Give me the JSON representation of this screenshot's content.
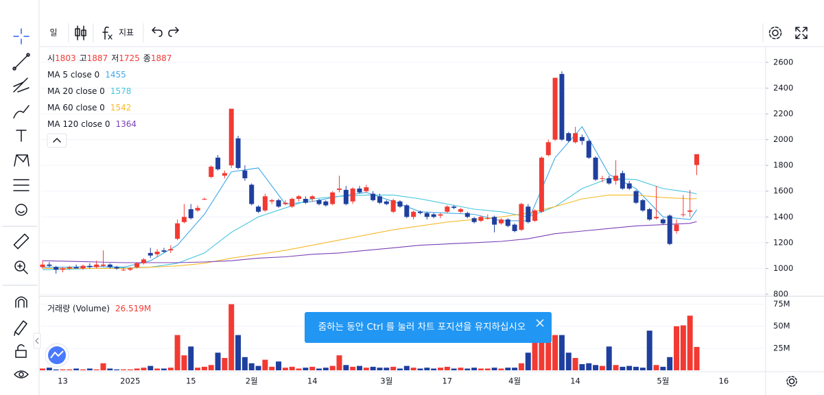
{
  "toolbar": {
    "interval": "일",
    "indicators": "지표"
  },
  "notice": "줌하는 동안 Ctrl 를 눌러 차트 포지션을 유지하십시오",
  "chart_data": {
    "type": "candlestick",
    "ohlc_labels": [
      "시",
      "고",
      "저",
      "종"
    ],
    "colors": {
      "up": "#f23a33",
      "down": "#1f3f9e"
    },
    "categories": [
      null,
      null,
      null,
      "13",
      null,
      null,
      null,
      null,
      null,
      null,
      null,
      null,
      null,
      "2025",
      null,
      null,
      null,
      null,
      null,
      null,
      null,
      null,
      "15",
      null,
      null,
      null,
      null,
      null,
      null,
      null,
      null,
      "2월",
      null,
      null,
      null,
      null,
      null,
      null,
      null,
      null,
      "14",
      null,
      null,
      null,
      null,
      null,
      null,
      null,
      null,
      null,
      null,
      "3월",
      null,
      null,
      null,
      null,
      null,
      null,
      null,
      null,
      "17",
      null,
      null,
      null,
      null,
      null,
      null,
      null,
      null,
      null,
      "4월",
      null,
      null,
      null,
      null,
      null,
      null,
      null,
      null,
      "14",
      null,
      null,
      null,
      null,
      null,
      null,
      null,
      null,
      null,
      null,
      null,
      null,
      "5월",
      null,
      null,
      null,
      null,
      null,
      null,
      null,
      null,
      "16"
    ],
    "ohlc": [
      [
        1010,
        1060,
        1000,
        1030
      ],
      [
        1030,
        1050,
        1010,
        1020
      ],
      [
        1010,
        1020,
        960,
        990
      ],
      [
        990,
        1010,
        970,
        1000
      ],
      [
        1000,
        1020,
        990,
        1010
      ],
      [
        1010,
        1030,
        1000,
        1000
      ],
      [
        1000,
        1030,
        990,
        1020
      ],
      [
        1020,
        1040,
        1000,
        1010
      ],
      [
        1010,
        1060,
        1000,
        1030
      ],
      [
        1020,
        1140,
        1010,
        1030
      ],
      [
        1030,
        1040,
        1000,
        1010
      ],
      [
        1010,
        1020,
        990,
        1000
      ],
      [
        990,
        1010,
        980,
        990
      ],
      [
        990,
        1010,
        980,
        1000
      ],
      [
        1010,
        1050,
        1000,
        1040
      ],
      [
        1040,
        1080,
        1030,
        1070
      ],
      [
        1120,
        1160,
        1080,
        1100
      ],
      [
        1110,
        1150,
        1090,
        1130
      ],
      [
        1140,
        1160,
        1120,
        1130
      ],
      [
        1140,
        1180,
        1120,
        1150
      ],
      [
        1230,
        1380,
        1220,
        1350
      ],
      [
        1360,
        1500,
        1350,
        1400
      ],
      [
        1460,
        1500,
        1380,
        1390
      ],
      [
        1450,
        1490,
        1440,
        1470
      ],
      [
        1540,
        1550,
        1530,
        1540
      ],
      [
        1710,
        1800,
        1700,
        1790
      ],
      [
        1860,
        1880,
        1760,
        1770
      ],
      [
        1720,
        1760,
        1700,
        1740
      ],
      [
        1800,
        2240,
        1780,
        2240
      ],
      [
        2010,
        2030,
        1770,
        1780
      ],
      [
        1760,
        1800,
        1680,
        1700
      ],
      [
        1650,
        1660,
        1490,
        1500
      ],
      [
        1480,
        1490,
        1430,
        1440
      ],
      [
        1450,
        1580,
        1440,
        1560
      ],
      [
        1520,
        1540,
        1500,
        1530
      ],
      [
        1530,
        1540,
        1470,
        1480
      ],
      [
        1500,
        1530,
        1490,
        1510
      ],
      [
        1480,
        1550,
        1470,
        1540
      ],
      [
        1540,
        1570,
        1520,
        1560
      ],
      [
        1540,
        1560,
        1500,
        1510
      ],
      [
        1540,
        1570,
        1520,
        1560
      ],
      [
        1530,
        1540,
        1490,
        1500
      ],
      [
        1520,
        1530,
        1480,
        1490
      ],
      [
        1500,
        1600,
        1490,
        1590
      ],
      [
        1610,
        1720,
        1590,
        1620
      ],
      [
        1610,
        1640,
        1490,
        1500
      ],
      [
        1520,
        1630,
        1500,
        1620
      ],
      [
        1620,
        1640,
        1580,
        1590
      ],
      [
        1600,
        1650,
        1590,
        1630
      ],
      [
        1580,
        1600,
        1520,
        1530
      ],
      [
        1560,
        1580,
        1500,
        1510
      ],
      [
        1520,
        1530,
        1490,
        1500
      ],
      [
        1440,
        1540,
        1430,
        1530
      ],
      [
        1520,
        1530,
        1470,
        1480
      ],
      [
        1490,
        1500,
        1390,
        1400
      ],
      [
        1400,
        1450,
        1380,
        1440
      ],
      [
        1440,
        1450,
        1420,
        1430
      ],
      [
        1430,
        1440,
        1380,
        1400
      ],
      [
        1420,
        1430,
        1390,
        1400
      ],
      [
        1410,
        1430,
        1390,
        1420
      ],
      [
        1440,
        1490,
        1430,
        1480
      ],
      [
        1480,
        1490,
        1460,
        1470
      ],
      [
        1440,
        1470,
        1430,
        1460
      ],
      [
        1430,
        1440,
        1390,
        1400
      ],
      [
        1390,
        1400,
        1350,
        1360
      ],
      [
        1370,
        1410,
        1360,
        1400
      ],
      [
        1390,
        1420,
        1380,
        1390
      ],
      [
        1400,
        1410,
        1280,
        1340
      ],
      [
        1350,
        1390,
        1340,
        1380
      ],
      [
        1380,
        1390,
        1320,
        1330
      ],
      [
        1340,
        1350,
        1280,
        1290
      ],
      [
        1300,
        1510,
        1290,
        1500
      ],
      [
        1480,
        1500,
        1350,
        1360
      ],
      [
        1370,
        1460,
        1360,
        1450
      ],
      [
        1440,
        1870,
        1430,
        1860
      ],
      [
        1880,
        2000,
        1870,
        1980
      ],
      [
        2000,
        2480,
        1990,
        2480
      ],
      [
        2510,
        2530,
        1990,
        2000
      ],
      [
        2050,
        2060,
        1980,
        1990
      ],
      [
        1980,
        2100,
        1970,
        2050
      ],
      [
        2020,
        2040,
        1960,
        1990
      ],
      [
        1990,
        2000,
        1850,
        1860
      ],
      [
        1860,
        1870,
        1680,
        1690
      ],
      [
        1700,
        1720,
        1670,
        1700
      ],
      [
        1700,
        1720,
        1650,
        1660
      ],
      [
        1680,
        1840,
        1650,
        1720
      ],
      [
        1740,
        1760,
        1610,
        1620
      ],
      [
        1660,
        1680,
        1610,
        1620
      ],
      [
        1600,
        1610,
        1500,
        1510
      ],
      [
        1530,
        1540,
        1440,
        1450
      ],
      [
        1460,
        1470,
        1370,
        1380
      ],
      [
        1390,
        1640,
        1380,
        1400
      ],
      [
        1380,
        1390,
        1340,
        1350
      ],
      [
        1410,
        1420,
        1180,
        1190
      ],
      [
        1290,
        1380,
        1270,
        1340
      ],
      [
        1420,
        1570,
        1400,
        1420
      ],
      [
        1440,
        1610,
        1400,
        1450
      ],
      [
        1803,
        1887,
        1725,
        1887
      ],
      null,
      null,
      null,
      null
    ],
    "ylim": [
      784,
      2722
    ],
    "yticks": [
      800,
      1000,
      1200,
      1400,
      1600,
      1800,
      2000,
      2200,
      2400,
      2600
    ],
    "grid": true,
    "moving_averages": [
      {
        "name": "MA 5 close 0",
        "color": "#3fa7e8",
        "x": [
          0,
          4,
          8,
          12,
          16,
          20,
          24,
          28,
          32,
          36,
          40,
          44,
          48,
          52,
          56,
          60,
          64,
          68,
          72,
          76,
          80,
          84,
          88,
          92,
          96,
          97
        ],
        "values": [
          1010,
          1010,
          1015,
          1010,
          1060,
          1180,
          1420,
          1750,
          1780,
          1500,
          1520,
          1560,
          1590,
          1520,
          1440,
          1430,
          1420,
          1370,
          1370,
          1860,
          2100,
          1730,
          1620,
          1400,
          1380,
          1455
        ]
      },
      {
        "name": "MA 20 close 0",
        "color": "#43c4de",
        "x": [
          0,
          4,
          8,
          12,
          16,
          20,
          24,
          28,
          32,
          36,
          40,
          44,
          48,
          52,
          56,
          60,
          64,
          68,
          72,
          76,
          80,
          84,
          88,
          92,
          96,
          97
        ],
        "values": [
          990,
          995,
          1000,
          1005,
          1010,
          1040,
          1120,
          1280,
          1400,
          1470,
          1540,
          1560,
          1570,
          1570,
          1540,
          1500,
          1460,
          1440,
          1400,
          1480,
          1620,
          1700,
          1690,
          1620,
          1590,
          1578
        ]
      },
      {
        "name": "MA 60 close 0",
        "color": "#f5b92a",
        "x": [
          0,
          4,
          8,
          12,
          16,
          20,
          24,
          28,
          32,
          36,
          40,
          44,
          48,
          52,
          56,
          60,
          64,
          68,
          72,
          76,
          80,
          84,
          88,
          92,
          96,
          97
        ],
        "values": [
          1000,
          1000,
          1000,
          1000,
          1010,
          1020,
          1040,
          1080,
          1110,
          1140,
          1180,
          1220,
          1260,
          1300,
          1330,
          1360,
          1380,
          1400,
          1430,
          1480,
          1540,
          1570,
          1570,
          1550,
          1540,
          1542
        ]
      },
      {
        "name": "MA 120 close 0",
        "color": "#7a3fb5",
        "x": [
          0,
          4,
          8,
          12,
          16,
          20,
          24,
          28,
          32,
          36,
          40,
          44,
          48,
          52,
          56,
          60,
          64,
          68,
          72,
          76,
          80,
          84,
          88,
          92,
          96,
          97
        ],
        "values": [
          1060,
          1055,
          1050,
          1045,
          1045,
          1045,
          1050,
          1060,
          1080,
          1090,
          1110,
          1120,
          1140,
          1160,
          1180,
          1190,
          1200,
          1210,
          1230,
          1270,
          1290,
          1310,
          1330,
          1340,
          1350,
          1364
        ]
      }
    ],
    "volume": {
      "name": "거래량 (Volume)",
      "values": [
        2,
        3,
        1,
        1,
        1,
        2,
        1,
        2,
        1,
        8,
        2,
        1,
        1,
        1,
        2,
        3,
        5,
        2,
        2,
        3,
        40,
        17,
        27,
        3,
        4,
        6,
        20,
        14,
        75,
        40,
        15,
        8,
        5,
        12,
        4,
        10,
        3,
        4,
        2,
        3,
        4,
        2,
        3,
        5,
        17,
        6,
        4,
        5,
        3,
        4,
        3,
        3,
        4,
        2,
        5,
        3,
        2,
        3,
        2,
        3,
        4,
        2,
        3,
        2,
        3,
        2,
        2,
        3,
        2,
        3,
        3,
        8,
        20,
        35,
        42,
        45,
        40,
        40,
        20,
        14,
        7,
        8,
        6,
        5,
        27,
        6,
        4,
        5,
        4,
        3,
        45,
        6,
        4,
        15,
        50,
        51,
        62,
        26.519,
        null,
        null,
        null,
        null
      ],
      "value_labels": [
        null,
        null,
        null,
        null,
        null,
        null,
        null,
        null,
        null,
        null,
        null,
        null,
        null,
        null,
        null,
        null,
        null,
        null,
        null,
        null,
        null,
        null,
        null,
        null,
        null,
        null,
        null,
        null,
        null,
        null,
        null,
        null,
        null,
        null,
        null,
        null,
        null,
        null,
        null,
        null,
        null,
        null,
        null,
        null,
        null,
        null,
        null,
        null,
        null,
        null,
        null,
        null,
        null,
        null,
        null,
        null,
        null,
        null,
        null,
        null,
        null,
        null,
        null,
        null,
        null,
        null,
        null,
        null,
        null,
        null,
        null,
        null,
        null,
        null,
        null,
        null,
        null,
        null,
        null,
        null,
        null,
        null,
        null,
        null,
        null,
        null,
        null,
        null,
        null,
        null,
        null,
        null,
        null,
        null,
        null,
        null,
        null,
        "26.519M",
        null,
        null,
        null,
        null
      ],
      "ylim": [
        0,
        84
      ],
      "yticks": [
        {
          "value": 25,
          "label": "25M"
        },
        {
          "value": 50,
          "label": "50M"
        },
        {
          "value": 75,
          "label": "75M"
        }
      ]
    }
  }
}
